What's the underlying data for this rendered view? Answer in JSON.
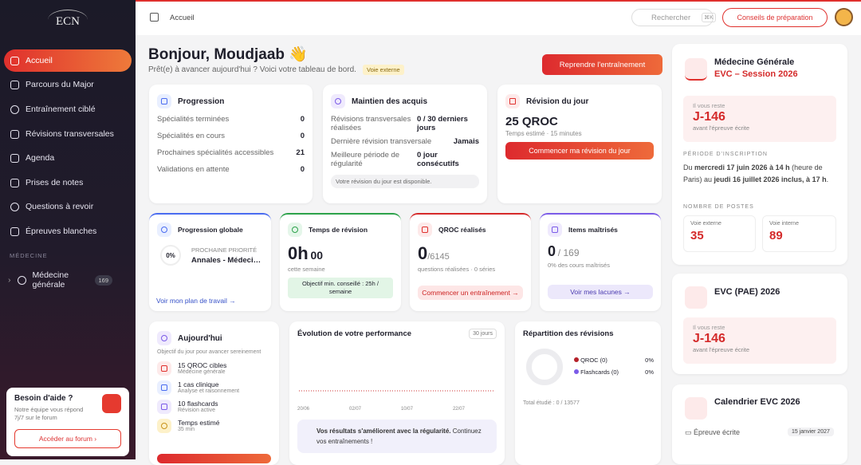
{
  "sidebar": {
    "logo": "ECN",
    "nav": [
      "Accueil",
      "Parcours du Major",
      "Entraînement ciblé",
      "Révisions transversales",
      "Agenda",
      "Prises de notes",
      "Questions à revoir",
      "Épreuves blanches"
    ],
    "section": "MÉDECINE",
    "specialty": {
      "label": "Médecine générale",
      "count": 169
    },
    "help": {
      "title": "Besoin d'aide ?",
      "text": "Notre équipe vous répond 7j/7 sur le forum",
      "button": "Accéder au forum"
    }
  },
  "topbar": {
    "breadcrumb": "Accueil",
    "search": "Rechercher",
    "shortcut": "⌘K",
    "button": "Conseils de préparation"
  },
  "header": {
    "greeting": "Bonjour, Moudjaab 👋",
    "subtitle": "Prêt(e) à avancer aujourd'hui ? Voici votre tableau de bord.",
    "badge": "Voie externe",
    "button": "Reprendre l'entraînement"
  },
  "progression": {
    "title": "Progression",
    "rows": [
      [
        "Spécialités terminées",
        0
      ],
      [
        "Spécialités en cours",
        0
      ],
      [
        "Prochaines spécialités accessibles",
        21
      ],
      [
        "Validations en attente",
        0
      ]
    ]
  },
  "maintien": {
    "title": "Maintien des acquis",
    "rows": [
      [
        "Révisions transversales réalisées",
        "0 / 30 derniers jours"
      ],
      [
        "Dernière révision transversale",
        "Jamais"
      ],
      [
        "Meilleure période de régularité",
        "0 jour consécutifs"
      ]
    ],
    "note": "Votre révision du jour est disponible."
  },
  "revision": {
    "title": "Révision du jour",
    "count": "25 QROC",
    "time": "Temps estimé · 15 minutes",
    "button": "Commencer ma révision du jour"
  },
  "globale": {
    "title": "Progression globale",
    "percent": "0%",
    "label": "PROCHAINE PRIORITÉ",
    "priority": "Annales - Médecine générale",
    "link": "Voir mon plan de travail"
  },
  "temps": {
    "title": "Temps de révision",
    "hours": "0h",
    "minutes": "00",
    "caption": "cette semaine",
    "goal": "Objectif min. conseillé : 25h / semaine"
  },
  "qroc": {
    "title": "QROC réalisés",
    "value": 0,
    "total": "/6145",
    "caption": "questions réalisées · 0 séries",
    "button": "Commencer un entraînement"
  },
  "items": {
    "title": "Items maîtrisés",
    "value": 0,
    "total": "/ 169",
    "caption": "0% des cours maîtrisés",
    "button": "Voir mes lacunes"
  },
  "today": {
    "title": "Aujourd'hui",
    "subtitle": "Objectif du jour pour avancer sereinement",
    "tasks": [
      [
        "15 QROC cibles",
        "Médecine générale"
      ],
      [
        "1 cas clinique",
        "Analyse et raisonnement"
      ],
      [
        "10 flashcards",
        "Révision active"
      ],
      [
        "Temps estimé",
        "35 min"
      ]
    ]
  },
  "performance": {
    "title": "Évolution de votre performance",
    "period": "30 jours",
    "x_labels": [
      "20/06",
      "02/07",
      "10/07",
      "22/07"
    ],
    "note_bold": "Vos résultats s'améliorent avec la régularité.",
    "note": " Continuez vos entraînements !"
  },
  "repartition": {
    "title": "Répartition des révisions",
    "legend": [
      [
        "QROC (0)",
        "0%"
      ],
      [
        "Flashcards (0)",
        "0%"
      ]
    ],
    "total": "Total étudié : 0 / 13577"
  },
  "exam1": {
    "title": "Médecine Générale",
    "subtitle": "EVC – Session 2026",
    "remain": "Il vous reste",
    "countdown": "J-146",
    "before": "avant l'épreuve écrite",
    "period_label": "PÉRIODE D'INSCRIPTION",
    "period": [
      "Du ",
      "mercredi 17 juin 2026 à 14 h",
      " (heure de Paris) au ",
      "jeudi 16 juillet 2026 inclus, à 17 h",
      "."
    ],
    "posts_label": "NOMBRE DE POSTES",
    "posts": [
      [
        "Voie externe",
        35
      ],
      [
        "Voie interne",
        89
      ]
    ]
  },
  "exam2": {
    "title": "EVC (PAE) 2026",
    "remain": "Il vous reste",
    "countdown": "J-146",
    "before": "avant l'épreuve écrite"
  },
  "calendar": {
    "title": "Calendrier EVC 2026",
    "event": "Épreuve écrite",
    "date": "15 janvier 2027"
  }
}
